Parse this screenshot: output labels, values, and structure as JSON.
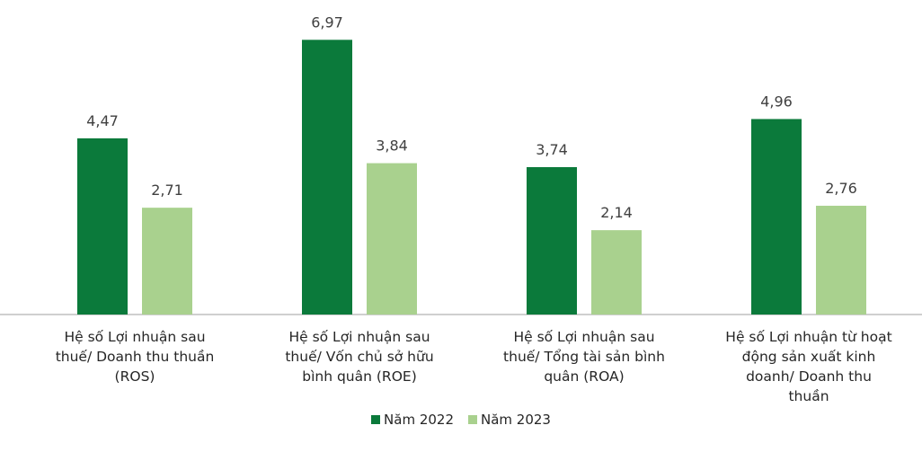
{
  "chart_data": {
    "type": "bar",
    "categories": [
      "Hệ số Lợi nhuận sau\nthuế/ Doanh thu thuần\n(ROS)",
      "Hệ số Lợi nhuận sau\nthuế/ Vốn chủ sở hữu\nbình quân (ROE)",
      "Hệ số Lợi nhuận sau\nthuế/ Tổng tài sản bình\nquân (ROA)",
      "Hệ số Lợi nhuận từ hoạt\nđộng sản xuất kinh\ndoanh/ Doanh thu\nthuần"
    ],
    "series": [
      {
        "name": "Năm 2022",
        "color": "#0b7a3b",
        "values": [
          4.47,
          6.97,
          3.74,
          4.96
        ],
        "value_labels": [
          "4,47",
          "6,97",
          "3,74",
          "4,96"
        ]
      },
      {
        "name": "Năm 2023",
        "color": "#a9d18e",
        "values": [
          2.71,
          3.84,
          2.14,
          2.76
        ],
        "value_labels": [
          "2,71",
          "3,84",
          "2,14",
          "2,76"
        ]
      }
    ],
    "ylim": [
      0,
      7
    ]
  }
}
